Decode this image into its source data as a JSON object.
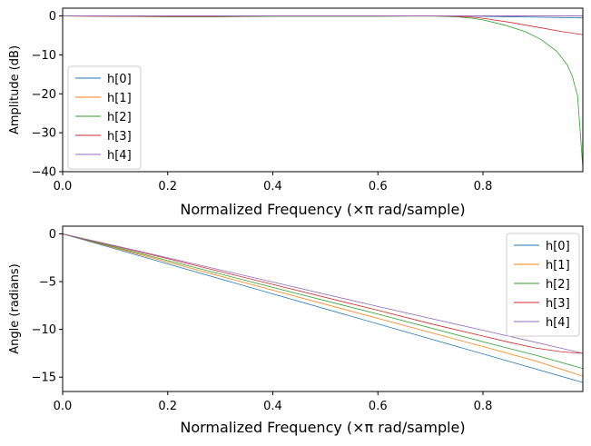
{
  "chart_data": [
    {
      "type": "line",
      "title": "",
      "xlabel": "Normalized Frequency (×π rad/sample)",
      "ylabel": "Amplitude (dB)",
      "xlim": [
        0,
        0.99
      ],
      "ylim": [
        -40,
        2
      ],
      "xticks": [
        "0.0",
        "0.2",
        "0.4",
        "0.6",
        "0.8"
      ],
      "xtick_values": [
        0,
        0.2,
        0.4,
        0.6,
        0.8
      ],
      "yticks": [
        "0",
        "−10",
        "−20",
        "−30",
        "−40"
      ],
      "ytick_values": [
        0,
        -10,
        -20,
        -30,
        -40
      ],
      "grid": false,
      "legend_position": "lower-left",
      "series": [
        {
          "name": "h[0]",
          "color": "#1f77b4",
          "x": [
            0,
            0.1,
            0.2,
            0.3,
            0.4,
            0.5,
            0.6,
            0.7,
            0.75,
            0.8,
            0.85,
            0.9,
            0.95,
            0.99
          ],
          "y": [
            0,
            0,
            0,
            0,
            0,
            0,
            0,
            0,
            0,
            -0.1,
            -0.2,
            -0.3,
            -0.4,
            -0.5
          ]
        },
        {
          "name": "h[1]",
          "color": "#ff7f0e",
          "x": [
            0,
            0.1,
            0.2,
            0.3,
            0.4,
            0.5,
            0.6,
            0.7,
            0.75,
            0.8,
            0.85,
            0.9,
            0.95,
            0.99
          ],
          "y": [
            0,
            0,
            0,
            0,
            0,
            0,
            0,
            0,
            0,
            0,
            0,
            0,
            0,
            0
          ]
        },
        {
          "name": "h[2]",
          "color": "#2ca02c",
          "x": [
            0,
            0.1,
            0.2,
            0.3,
            0.4,
            0.5,
            0.6,
            0.7,
            0.75,
            0.78,
            0.8,
            0.84,
            0.88,
            0.91,
            0.94,
            0.96,
            0.97,
            0.98,
            0.99
          ],
          "y": [
            0,
            -0.1,
            -0.2,
            -0.2,
            -0.1,
            -0.1,
            -0.1,
            0,
            -0.2,
            -0.6,
            -1,
            -2.3,
            -4,
            -6,
            -9,
            -12.5,
            -15.5,
            -20.5,
            -39
          ]
        },
        {
          "name": "h[3]",
          "color": "#d62728",
          "x": [
            0,
            0.1,
            0.2,
            0.3,
            0.4,
            0.5,
            0.6,
            0.7,
            0.75,
            0.78,
            0.8,
            0.85,
            0.9,
            0.95,
            0.99
          ],
          "y": [
            0,
            -0.1,
            -0.1,
            -0.1,
            0,
            0,
            0,
            0,
            -0.1,
            -0.3,
            -0.6,
            -1.6,
            -2.8,
            -4,
            -4.8
          ]
        },
        {
          "name": "h[4]",
          "color": "#9467bd",
          "x": [
            0,
            0.1,
            0.2,
            0.3,
            0.4,
            0.5,
            0.6,
            0.7,
            0.75,
            0.8,
            0.85,
            0.9,
            0.95,
            0.99
          ],
          "y": [
            0,
            0,
            0,
            0,
            0,
            0,
            0,
            0,
            0,
            0,
            0,
            0,
            0,
            0
          ]
        }
      ]
    },
    {
      "type": "line",
      "title": "",
      "xlabel": "Normalized Frequency (×π rad/sample)",
      "ylabel": "Angle (radians)",
      "xlim": [
        0,
        0.99
      ],
      "ylim": [
        -16.5,
        0.8
      ],
      "xticks": [
        "0.0",
        "0.2",
        "0.4",
        "0.6",
        "0.8"
      ],
      "xtick_values": [
        0,
        0.2,
        0.4,
        0.6,
        0.8
      ],
      "yticks": [
        "0",
        "−5",
        "−10",
        "−15"
      ],
      "ytick_values": [
        0,
        -5,
        -10,
        -15
      ],
      "grid": false,
      "legend_position": "upper-right",
      "series": [
        {
          "name": "h[0]",
          "color": "#1f77b4",
          "x": [
            0,
            0.99
          ],
          "y": [
            0,
            -15.55
          ]
        },
        {
          "name": "h[1]",
          "color": "#ff7f0e",
          "x": [
            0,
            0.2,
            0.4,
            0.6,
            0.8,
            0.9,
            0.99
          ],
          "y": [
            0,
            -2.95,
            -5.9,
            -8.85,
            -11.8,
            -13.3,
            -14.9
          ]
        },
        {
          "name": "h[2]",
          "color": "#2ca02c",
          "x": [
            0,
            0.2,
            0.4,
            0.6,
            0.8,
            0.9,
            0.99
          ],
          "y": [
            0,
            -2.8,
            -5.6,
            -8.4,
            -11.3,
            -12.7,
            -14.1
          ]
        },
        {
          "name": "h[3]",
          "color": "#d62728",
          "x": [
            0,
            0.2,
            0.4,
            0.6,
            0.7,
            0.8,
            0.85,
            0.9,
            0.95,
            0.99
          ],
          "y": [
            0,
            -2.6,
            -5.3,
            -8.0,
            -9.4,
            -10.7,
            -11.35,
            -11.95,
            -12.35,
            -12.5
          ]
        },
        {
          "name": "h[4]",
          "color": "#9467bd",
          "x": [
            0,
            0.2,
            0.4,
            0.6,
            0.8,
            0.9,
            0.99
          ],
          "y": [
            0,
            -2.5,
            -5.05,
            -7.6,
            -10.1,
            -11.35,
            -12.5
          ]
        }
      ]
    }
  ]
}
